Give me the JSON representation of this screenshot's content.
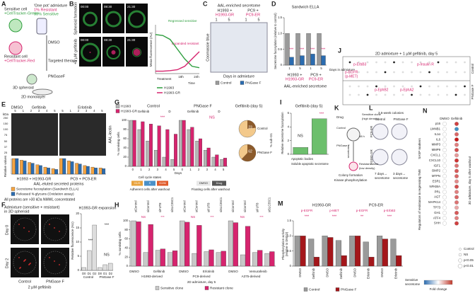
{
  "panels": [
    {
      "letter": "A",
      "texts": [
        "Sensitive cell",
        "+CellTracker-Green",
        "'One pot' admixture",
        "1% Resistant",
        "99% Sensitive",
        "Resistant cell",
        "+CellTracker-Red",
        "DMSO",
        "Targeted therapy",
        "PNGaseF",
        "3D spheroid",
        "2D monolayer"
      ]
    },
    {
      "letter": "B",
      "texts": [
        "Spheroid formation",
        "+5 µM gefitinib",
        "00:00",
        "08:30",
        "21:30",
        "00:00",
        "08:30",
        "21:30",
        "Mean fluorescence (AU)",
        "Regressed sensitive",
        "Expanded resistant",
        "Treatment",
        "Time",
        "18h",
        "24h"
      ],
      "chart": {
        "type": "line",
        "ylim": [
          0,
          100
        ],
        "series": [
          {
            "name": "H1993",
            "color": "#2e9e3e",
            "values": [
              80,
              78,
              70,
              50,
              30,
              15,
              12
            ]
          },
          {
            "name": "H1993-GR",
            "color": "#d6246e",
            "values": [
              5,
              5,
              6,
              8,
              15,
              30,
              45
            ]
          }
        ]
      }
    },
    {
      "letter": "C",
      "texts": [
        "AAL-enriched secretome",
        "H1993 +",
        "H1993-GR",
        "PC9 +",
        "PC9-ER",
        "1",
        "5",
        "1",
        "5",
        "Days in admixture",
        "Coomassie blue"
      ]
    },
    {
      "letter": "D",
      "texts": [
        "Sandwich ELLA",
        "Secretome fucosylation (relative to control)",
        "H1993 +",
        "H1993-GR",
        "PC9 +",
        "PC9-ER",
        "AAL-enriched secretome",
        "Days in admixture",
        "***",
        "***",
        "***",
        "***"
      ],
      "chart": {
        "type": "bar",
        "categories": [
          "1",
          "5",
          "1",
          "5"
        ],
        "ylim": [
          0,
          1.5
        ],
        "yticks": [
          0,
          0.5,
          {
            "value": 1,
            "label": "1.0"
          },
          1.5
        ],
        "series": [
          {
            "name": "Control",
            "color": "#9a9a9a",
            "values": [
              1,
              1,
              1,
              1
            ]
          },
          {
            "name": "PNGase F",
            "color": "#2b6cb0",
            "values": [
              0.25,
              0.3,
              0.35,
              0.3
            ]
          }
        ]
      }
    },
    {
      "letter": "E",
      "texts": [
        "DMSO",
        "Gefitinib",
        "Erlotinib",
        "kDa",
        "250",
        "150",
        "100",
        "75",
        "50",
        "37",
        "25",
        "AAL-lectin",
        "Relative values",
        "H1993 + H1993-GR",
        "PC9 + PC9-ER",
        "AAL-eluted secreted proteins",
        "All proteins are >30 kDa NMWL concentrated"
      ],
      "chart": {
        "type": "bar",
        "categories": [
          "5",
          "1",
          "2",
          "3",
          "4",
          "5",
          "5",
          "1",
          "2",
          "3",
          "4",
          "5"
        ],
        "ylim": [
          0,
          1
        ],
        "series": [
          {
            "name": "Secretome fucosylation (Sandwich ELLA)",
            "color": "#f4a340",
            "values": [
              1,
              0.9,
              0.75,
              0.6,
              0.45,
              0.35,
              1,
              0.85,
              0.7,
              0.55,
              0.45,
              0.4
            ]
          },
          {
            "name": "Released N-glycans (Oxidation assay)",
            "color": "#2b6cb0",
            "values": [
              1,
              0.85,
              0.7,
              0.55,
              0.4,
              0.3,
              1,
              0.8,
              0.65,
              0.5,
              0.4,
              0.35
            ]
          }
        ]
      }
    },
    {
      "letter": "F",
      "texts": [
        "Admixture (sensitive + resistant)",
        "in 3D spheroid",
        "Day 0",
        "Day 2",
        "Control",
        "PNGase F",
        "2 µM gefitinib",
        "H1993-GR expansion",
        "Relative fluorescence (AU)",
        "Control",
        "PNGase F",
        "***",
        "***",
        "NS"
      ],
      "chart": {
        "type": "bar",
        "categories": [
          "D0",
          "D1",
          "D2",
          "D0",
          "D1",
          "D2"
        ],
        "values": [
          1,
          7,
          16,
          1,
          2,
          2.5
        ],
        "color": "#dddddd",
        "ylim": [
          0,
          20
        ],
        "yticks": [
          0,
          5,
          10,
          15,
          20
        ]
      }
    },
    {
      "letter": "G",
      "texts": [
        "Control",
        "PNGase F",
        "Gefitinib",
        "D",
        "Gefitinib",
        "D",
        "% surviving cells",
        "Days",
        "***",
        "NS",
        "Gefitinib (day 5)",
        "% sub-G1",
        "Cell cycle states",
        "G1/S",
        "S",
        "G2/M",
        "Adherent cells after washout",
        "DMSO",
        "Drug",
        "Floating cells after washout"
      ],
      "chart": {
        "type": "bar",
        "categories": [
          "0",
          "1",
          "2",
          "3",
          "4",
          "5",
          "0",
          "1",
          "2",
          "3",
          "4",
          "5"
        ],
        "ylim": [
          0,
          100
        ],
        "yticks": [
          0,
          20,
          40,
          60,
          80,
          100
        ],
        "series": [
          {
            "name": "H1993",
            "color": "#b5b5b5",
            "values": [
              100,
              80,
              55,
              35,
              20,
              15,
              100,
              80,
              55,
              35,
              20,
              15
            ]
          },
          {
            "name": "H1993-GR",
            "color": "#d6246e",
            "values": [
              100,
              97,
              92,
              88,
              80,
              70,
              100,
              85,
              60,
              40,
              25,
              18
            ]
          }
        ]
      },
      "pie": {
        "categories": [
          "Control",
          "PNGase F"
        ],
        "values": [
          23,
          62
        ],
        "color": "#8b5a2b"
      }
    },
    {
      "letter": "H",
      "texts": [
        "DMSO",
        "Gefitinib",
        "H1993-derived",
        "DMSO",
        "Erlotinib",
        "PC9-derived",
        "DMSO",
        "Vemurafenib",
        "A375-derived",
        "% surviving cells",
        "2D admixture, day 5",
        "NS",
        "***",
        "NS",
        "***",
        "NS",
        "***"
      ],
      "chart": {
        "type": "bar",
        "categories": [
          "siControl",
          "siControl",
          "siFUT8",
          "siSLC35C1",
          "siControl",
          "siControl",
          "siFUT8",
          "siSLC35C1",
          "siControl",
          "siControl",
          "siFUT8",
          "siSLC35C1"
        ],
        "ylim": [
          0,
          100
        ],
        "yticks": [
          0,
          20,
          40,
          60,
          80,
          100
        ],
        "series": [
          {
            "name": "Sensitive clone",
            "color": "#c8c8c8",
            "values": [
              100,
              30,
              35,
              30,
              100,
              28,
              32,
              30,
              100,
              25,
              30,
              28
            ]
          },
          {
            "name": "Resistant clone",
            "color": "#d6246e",
            "values": [
              98,
              92,
              38,
              34,
              97,
              90,
              36,
              33,
              96,
              88,
              35,
              32
            ]
          }
        ]
      }
    },
    {
      "letter": "I",
      "texts": [
        "Gefitinib (day 5)",
        "Relative secretome fucosylation",
        "***",
        "NS"
      ],
      "chart": {
        "type": "bar",
        "categories": [
          "Apoptotic bodies",
          "Soluble apoptotic secretome"
        ],
        "values": [
          1,
          5.2
        ],
        "color": "#6cbf6c",
        "ylim": [
          0,
          6
        ],
        "yticks": [
          0,
          2,
          4,
          6
        ]
      }
    },
    {
      "letter": "J",
      "texts": [
        "2D admixture + 1 µM gefitinib, day 5",
        "p-ErbB3",
        "p-Insulin R",
        "p-EGFR",
        "(p-MET)",
        "p-EphB2",
        "p-EphA2",
        "Control",
        "PNGase F"
      ]
    },
    {
      "letter": "K",
      "texts": [
        "Drug",
        "Sensitive clone",
        "(high density)",
        "Control",
        "PNGase F",
        "48 h",
        "secretome",
        "Resistant clone",
        "(low density)",
        "Colony formation",
        "Kinase phosphorylation"
      ]
    },
    {
      "letter": "L",
      "texts": [
        "3.5-week colonies",
        "Control",
        "PNGase F",
        "PC9-ER",
        "H1993-GR",
        "7 days→",
        "secretome",
        "3 days→",
        "secretome"
      ]
    },
    {
      "letter": "M",
      "texts": [
        "H1993-GR",
        "PC9-ER",
        "p-EGFR",
        "p-MET",
        "p-EGFR",
        "p-ErbB3",
        "Phosphorylation activity",
        "(relative to DMSO)",
        "Sensitive",
        "secretome",
        "***",
        "***",
        "**",
        "***"
      ],
      "chart": {
        "type": "bar",
        "categories": [
          "DMSO",
          "Gefitinib",
          "DMSO",
          "Gefitinib",
          "DMSO",
          "Erlotinib",
          "DMSO",
          "Erlotinib"
        ],
        "ylim": [
          0,
          1.5
        ],
        "yticks": [
          0,
          0.5,
          {
            "value": 1,
            "label": "1.0"
          },
          1.5
        ],
        "series": [
          {
            "name": "Control",
            "color": "#9a9a9a",
            "values": [
              1,
              0.9,
              1,
              0.85,
              1,
              0.8,
              1,
              0.9
            ]
          },
          {
            "name": "PNGase F",
            "color": "#a4161a",
            "values": [
              1,
              0.3,
              0.95,
              0.35,
              1,
              0.3,
              0.9,
              0.35
            ]
          }
        ]
      }
    },
    {
      "letter": "N",
      "texts": [
        "DMSO",
        "Gefitinib",
        "SASP markers",
        "Regulators of resistance in regressing TME",
        "3D admixture, day 5 after washout",
        "Control",
        "NS",
        "p<0.05",
        "p<0.01",
        "Fold change"
      ],
      "genes": [
        {
          "name": "p16",
          "values": [
            0,
            1.5
          ]
        },
        {
          "name": "LMNB1",
          "values": [
            0,
            -1.5
          ]
        },
        {
          "name": "IL1α",
          "values": [
            0,
            1.2
          ]
        },
        {
          "name": "IL6",
          "values": [
            0,
            1.8
          ]
        },
        {
          "name": "MMP3",
          "values": [
            0,
            1
          ]
        },
        {
          "name": "MMP9",
          "values": [
            0,
            1.4
          ]
        },
        {
          "name": "CXCL1",
          "values": [
            0,
            0.8
          ]
        },
        {
          "name": "CXCL10",
          "values": [
            0,
            1.6
          ]
        },
        {
          "name": "IGF1",
          "values": [
            0,
            1.1
          ]
        },
        {
          "name": "BMP2",
          "values": [
            0,
            1.3
          ]
        },
        {
          "name": "MTPN",
          "values": [
            0,
            1.2
          ]
        },
        {
          "name": "ESR1",
          "values": [
            0,
            0.9
          ]
        },
        {
          "name": "NFKBIA",
          "values": [
            0,
            1.4
          ]
        },
        {
          "name": "PRL",
          "values": [
            0,
            1
          ]
        },
        {
          "name": "AGT",
          "values": [
            0,
            1.2
          ]
        },
        {
          "name": "MAPK14",
          "values": [
            0,
            1.1
          ]
        },
        {
          "name": "TP73",
          "values": [
            0,
            0.7
          ]
        },
        {
          "name": "GH1",
          "values": [
            0,
            1.3
          ]
        },
        {
          "name": "ATF4",
          "values": [
            0,
            1
          ]
        },
        {
          "name": "SHH",
          "values": [
            0,
            1.5
          ]
        }
      ]
    }
  ]
}
